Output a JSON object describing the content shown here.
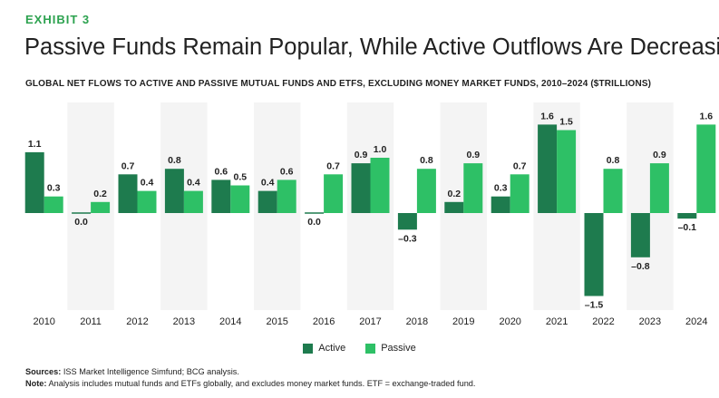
{
  "header": {
    "exhibit": "EXHIBIT 3",
    "title": "Passive Funds Remain Popular, While Active Outflows Are Decreasing",
    "subtitle": "GLOBAL NET FLOWS TO ACTIVE AND PASSIVE MUTUAL FUNDS AND ETFS, EXCLUDING MONEY MARKET FUNDS, 2010–2024 ($TRILLIONS)"
  },
  "colors": {
    "active": "#1e7b4e",
    "passive": "#2ec066",
    "band": "#f4f4f4",
    "exhibit": "#2ca24f"
  },
  "chart_data": {
    "type": "bar",
    "categories": [
      "2010",
      "2011",
      "2012",
      "2013",
      "2014",
      "2015",
      "2016",
      "2017",
      "2018",
      "2019",
      "2020",
      "2021",
      "2022",
      "2023",
      "2024"
    ],
    "series": [
      {
        "name": "Active",
        "values": [
          1.1,
          0.0,
          0.7,
          0.8,
          0.6,
          0.4,
          0.0,
          0.9,
          -0.3,
          0.2,
          0.3,
          1.6,
          -1.5,
          -0.8,
          -0.1
        ],
        "labels": [
          "1.1",
          "0.0",
          "0.7",
          "0.8",
          "0.6",
          "0.4",
          "0.0",
          "0.9",
          "–0.3",
          "0.2",
          "0.3",
          "1.6",
          "–1.5",
          "–0.8",
          "–0.1"
        ]
      },
      {
        "name": "Passive",
        "values": [
          0.3,
          0.2,
          0.4,
          0.4,
          0.5,
          0.6,
          0.7,
          1.0,
          0.8,
          0.9,
          0.7,
          1.5,
          0.8,
          0.9,
          1.6
        ],
        "labels": [
          "0.3",
          "0.2",
          "0.4",
          "0.4",
          "0.5",
          "0.6",
          "0.7",
          "1.0",
          "0.8",
          "0.9",
          "0.7",
          "1.5",
          "0.8",
          "0.9",
          "1.6"
        ]
      }
    ],
    "ylim": [
      -1.7,
      2.1
    ],
    "xlabel": "",
    "ylabel": "$Trillions",
    "grid": false,
    "legend": "bottom-center"
  },
  "legend": {
    "active_label": "Active",
    "passive_label": "Passive"
  },
  "footer": {
    "sources_label": "Sources:",
    "sources_text": " ISS Market Intelligence Simfund; BCG analysis.",
    "note_label": "Note:",
    "note_text": " Analysis includes mutual funds and ETFs globally, and excludes money market funds. ETF = exchange-traded fund."
  }
}
